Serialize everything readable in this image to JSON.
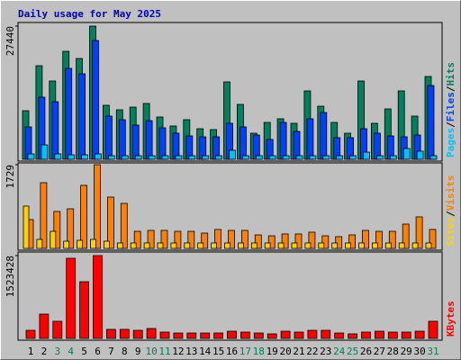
{
  "chart_data": [
    {
      "type": "bar",
      "title": "Daily usage for May 2025",
      "legend_separator": "/",
      "series": [
        {
          "name": "Pages",
          "color": "#00c0ff",
          "values": [
            1110,
            2965,
            1110,
            925,
            925,
            1110,
            740,
            740,
            740,
            740,
            740,
            740,
            740,
            740,
            740,
            1855,
            740,
            740,
            740,
            740,
            740,
            740,
            740,
            740,
            740,
            1480,
            740,
            740,
            2225,
            1670,
            740
          ]
        },
        {
          "name": "Files",
          "color": "#0040ff",
          "values": [
            6675,
            12790,
            11865,
            18725,
            17610,
            24470,
            8900,
            8160,
            7045,
            7970,
            6490,
            5375,
            4820,
            4635,
            4635,
            7415,
            6675,
            5005,
            4080,
            7600,
            5745,
            8345,
            9640,
            4450,
            4450,
            6300,
            5375,
            4820,
            4635,
            5005,
            15200
          ]
        },
        {
          "name": "Hits",
          "color": "#00805c",
          "values": [
            10011,
            19280,
            16130,
            22250,
            20765,
            27440,
            11125,
            10200,
            10750,
            11500,
            8715,
            6860,
            8160,
            6300,
            6120,
            15945,
            11310,
            5375,
            7600,
            8345,
            7415,
            14090,
            10940,
            7600,
            5375,
            16130,
            7415,
            10380,
            14090,
            8900,
            17060
          ]
        }
      ],
      "ylim": [
        0,
        27440
      ],
      "yticks": [
        27440
      ]
    },
    {
      "type": "bar",
      "legend_separator": "/",
      "series": [
        {
          "name": "Sites",
          "color": "#ffd000",
          "values": [
            874,
            186,
            353,
            149,
            167,
            186,
            149,
            112,
            112,
            112,
            112,
            112,
            112,
            112,
            112,
            112,
            112,
            112,
            112,
            112,
            112,
            112,
            112,
            112,
            112,
            112,
            112,
            112,
            112,
            112,
            112
          ]
        },
        {
          "name": "Visits",
          "color": "#ff8000",
          "values": [
            595,
            1357,
            763,
            818,
            1302,
            1729,
            1060,
            930,
            353,
            372,
            372,
            353,
            353,
            316,
            391,
            372,
            372,
            279,
            260,
            298,
            298,
            335,
            260,
            242,
            279,
            372,
            353,
            353,
            502,
            651,
            391
          ]
        }
      ],
      "ylim": [
        0,
        1729
      ],
      "yticks": [
        1729
      ]
    },
    {
      "type": "bar",
      "series": [
        {
          "name": "KBytes",
          "color": "#ff0000",
          "values": [
            149000,
            447000,
            315000,
            1474000,
            1043000,
            1523428,
            166000,
            166000,
            149000,
            182000,
            116000,
            99000,
            99000,
            99000,
            99000,
            132000,
            116000,
            99000,
            83000,
            132000,
            116000,
            149000,
            149000,
            99000,
            83000,
            116000,
            132000,
            116000,
            116000,
            132000,
            315000
          ]
        }
      ],
      "ylim": [
        0,
        1523428
      ],
      "yticks": [
        1523428
      ],
      "categories": [
        "1",
        "2",
        "3",
        "4",
        "5",
        "6",
        "7",
        "8",
        "9",
        "10",
        "11",
        "12",
        "13",
        "14",
        "15",
        "16",
        "17",
        "18",
        "19",
        "20",
        "21",
        "22",
        "23",
        "24",
        "25",
        "26",
        "27",
        "28",
        "29",
        "30",
        "31"
      ],
      "category_colors": [
        "#000000",
        "#000000",
        "#00805c",
        "#00805c",
        "#000000",
        "#000000",
        "#000000",
        "#000000",
        "#000000",
        "#00805c",
        "#00805c",
        "#000000",
        "#000000",
        "#000000",
        "#000000",
        "#000000",
        "#00805c",
        "#00805c",
        "#000000",
        "#000000",
        "#000000",
        "#000000",
        "#000000",
        "#00805c",
        "#00805c",
        "#000000",
        "#000000",
        "#000000",
        "#000000",
        "#000000",
        "#00805c"
      ]
    }
  ]
}
